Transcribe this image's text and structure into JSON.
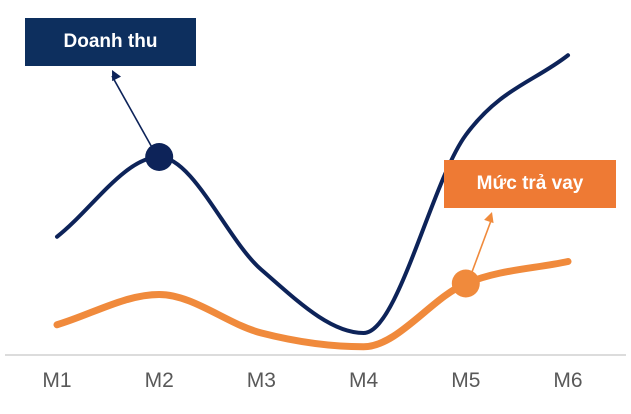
{
  "chart_data": {
    "type": "line",
    "categories": [
      "M1",
      "M2",
      "M3",
      "M4",
      "M5",
      "M6"
    ],
    "series": [
      {
        "name": "Doanh thu",
        "color": "#0d2359",
        "values": [
          4.3,
          7.2,
          3.1,
          0.8,
          8.0,
          10.9
        ],
        "highlight_index": 1
      },
      {
        "name": "Mức trả vay",
        "color": "#f08a3c",
        "values": [
          1.1,
          2.2,
          0.8,
          0.3,
          2.6,
          3.4
        ],
        "highlight_index": 4
      }
    ],
    "callouts": [
      {
        "series": 0,
        "text": "Doanh thu",
        "box_color": "#0d2f5e"
      },
      {
        "series": 1,
        "text": "Mức trả vay",
        "box_color": "#ee7a34"
      }
    ],
    "xlabel": "",
    "ylabel": "",
    "ylim": [
      0,
      12
    ],
    "grid": false,
    "axis_color": "#d0d0d0"
  }
}
